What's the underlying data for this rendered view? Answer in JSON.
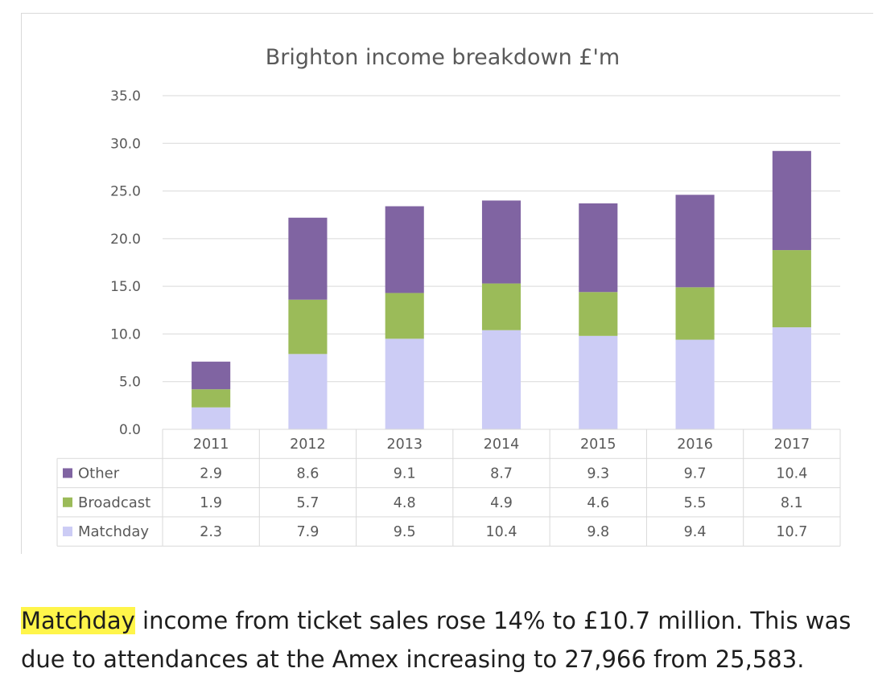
{
  "chart_data": {
    "type": "bar",
    "stacked": true,
    "title": "Brighton income breakdown £'m",
    "categories": [
      "2011",
      "2012",
      "2013",
      "2014",
      "2015",
      "2016",
      "2017"
    ],
    "series": [
      {
        "name": "Matchday",
        "color": "#ccccf5",
        "values": [
          2.3,
          7.9,
          9.5,
          10.4,
          9.8,
          9.4,
          10.7
        ],
        "labels": [
          "2.3",
          "7.9",
          "9.5",
          "10.4",
          "9.8",
          "9.4",
          "10.7"
        ]
      },
      {
        "name": "Broadcast",
        "color": "#9bbb59",
        "values": [
          1.9,
          5.7,
          4.8,
          4.9,
          4.6,
          5.5,
          8.1
        ],
        "labels": [
          "1.9",
          "5.7",
          "4.8",
          "4.9",
          "4.6",
          "5.5",
          "8.1"
        ]
      },
      {
        "name": "Other",
        "color": "#8064a2",
        "values": [
          2.9,
          8.6,
          9.1,
          8.7,
          9.3,
          9.7,
          10.4
        ],
        "labels": [
          "2.9",
          "8.6",
          "9.1",
          "8.7",
          "9.3",
          "9.7",
          "10.4"
        ]
      }
    ],
    "y_ticks": [
      "0.0",
      "5.0",
      "10.0",
      "15.0",
      "20.0",
      "25.0",
      "30.0",
      "35.0"
    ],
    "ylim": [
      0,
      35
    ],
    "grid": true,
    "legend": "data-table",
    "data_table": true
  },
  "caption": {
    "highlight": "Matchday",
    "text": " income from ticket sales rose 14% to £10.7 million. This was due to attendances at the Amex increasing to 27,966 from 25,583."
  }
}
